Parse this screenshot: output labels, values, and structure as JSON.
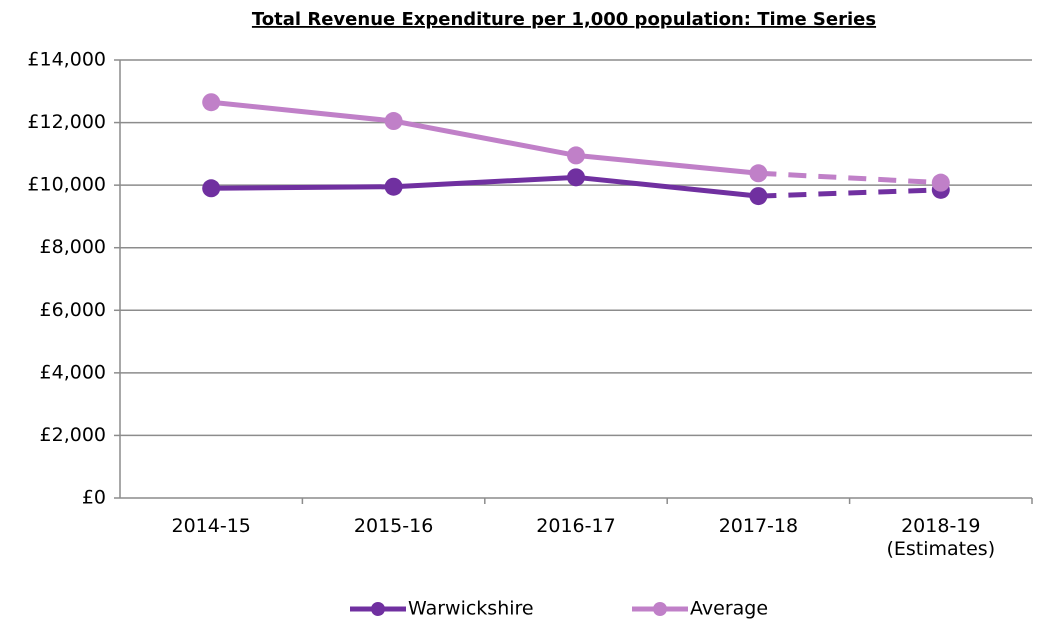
{
  "chart_data": {
    "type": "line",
    "title": "Total Revenue Expenditure per 1,000 population: Time Series",
    "categories": [
      "2014-15",
      "2015-16",
      "2016-17",
      "2017-18",
      "2018-19 (Estimates)"
    ],
    "series": [
      {
        "name": "Warwickshire",
        "color": "#7030a0",
        "values": [
          9900,
          9950,
          10250,
          9650,
          9850
        ]
      },
      {
        "name": "Average",
        "color": "#c080c8",
        "values": [
          12650,
          12050,
          10950,
          10380,
          10080
        ]
      }
    ],
    "dashed_from": 3,
    "ylim": [
      0,
      14000
    ],
    "yticks": [
      {
        "value": 0,
        "label": "£0"
      },
      {
        "value": 2000,
        "label": "£2,000"
      },
      {
        "value": 4000,
        "label": "£4,000"
      },
      {
        "value": 6000,
        "label": "£6,000"
      },
      {
        "value": 8000,
        "label": "£8,000"
      },
      {
        "value": 10000,
        "label": "£10,000"
      },
      {
        "value": 12000,
        "label": "£12,000"
      },
      {
        "value": 14000,
        "label": "£14,000"
      }
    ],
    "grid": true,
    "legend": "bottom"
  }
}
